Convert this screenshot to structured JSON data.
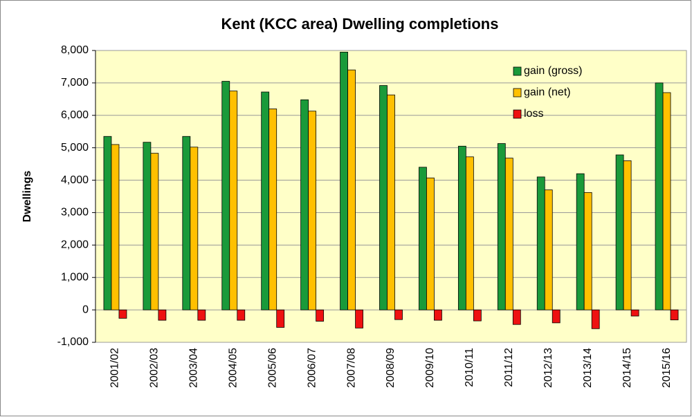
{
  "chart_data": {
    "type": "bar",
    "title": "Kent (KCC area) Dwelling completions",
    "y_label": "Dwellings",
    "categories": [
      "2001/02",
      "2002/03",
      "2003/04",
      "2004/05",
      "2005/06",
      "2006/07",
      "2007/08",
      "2008/09",
      "2009/10",
      "2010/11",
      "2011/12",
      "2012/13",
      "2013/14",
      "2014/15",
      "2015/16"
    ],
    "series": [
      {
        "name": "gain (gross)",
        "color": "#1a9a3a",
        "values": [
          5350,
          5170,
          5350,
          7050,
          6720,
          6480,
          7950,
          6920,
          4400,
          5050,
          5130,
          4100,
          4200,
          4780,
          7000
        ]
      },
      {
        "name": "gain (net)",
        "color": "#ffc000",
        "values": [
          5100,
          4830,
          5020,
          6750,
          6200,
          6130,
          7400,
          6630,
          4070,
          4720,
          4680,
          3700,
          3620,
          4600,
          6700
        ]
      },
      {
        "name": "loss",
        "color": "#ee1111",
        "values": [
          -260,
          -320,
          -320,
          -320,
          -540,
          -350,
          -560,
          -300,
          -320,
          -340,
          -450,
          -400,
          -580,
          -190,
          -310
        ]
      }
    ],
    "ylim": [
      -1000,
      8000
    ],
    "yticks": [
      {
        "value": -1000,
        "label": "-1,000"
      },
      0,
      {
        "value": 1000,
        "label": "1,000"
      },
      {
        "value": 2000,
        "label": "2,000"
      },
      {
        "value": 3000,
        "label": "3,000"
      },
      {
        "value": 4000,
        "label": "4,000"
      },
      {
        "value": 5000,
        "label": "5,000"
      },
      {
        "value": 6000,
        "label": "6,000"
      },
      {
        "value": 7000,
        "label": "7,000"
      },
      {
        "value": 8000,
        "label": "8,000"
      }
    ],
    "grid": true,
    "legend": "upper right",
    "plot_background": "#ffffc8"
  }
}
